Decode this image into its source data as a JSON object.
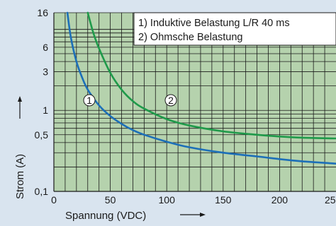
{
  "chart_data": {
    "type": "line",
    "xlabel": "Spannung (VDC)",
    "ylabel": "Strom (A)",
    "x_ticks": [
      {
        "value": 0,
        "label": "0"
      },
      {
        "value": 50,
        "label": "50"
      },
      {
        "value": 100,
        "label": "100"
      },
      {
        "value": 150,
        "label": "150"
      },
      {
        "value": 200,
        "label": "200"
      },
      {
        "value": 250,
        "label": "250"
      }
    ],
    "y_ticks": [
      {
        "value": 0.1,
        "label": "0,1"
      },
      {
        "value": 0.5,
        "label": "0,5"
      },
      {
        "value": 1,
        "label": "1"
      },
      {
        "value": 3,
        "label": "3"
      },
      {
        "value": 6,
        "label": "6"
      },
      {
        "value": 16,
        "label": "16"
      }
    ],
    "y_scale": "log",
    "xlim": [
      0,
      250
    ],
    "ylim": [
      0.1,
      16
    ],
    "grid": true,
    "legend": [
      {
        "label": "1) Induktive Belastung L/R 40 ms",
        "marker": "1"
      },
      {
        "label": "2) Ohmsche Belastung",
        "marker": "2"
      }
    ],
    "series": [
      {
        "marker": "1",
        "color": "#1c6fb8",
        "x": [
          12,
          15,
          20,
          25,
          30,
          40,
          50,
          60,
          70,
          80,
          100,
          120,
          150,
          180,
          200,
          220,
          250
        ],
        "y": [
          16,
          8.0,
          4.0,
          2.55,
          1.8,
          1.15,
          0.85,
          0.68,
          0.57,
          0.5,
          0.41,
          0.35,
          0.3,
          0.27,
          0.25,
          0.235,
          0.22
        ]
      },
      {
        "marker": "2",
        "color": "#1f9a4a",
        "x": [
          30,
          35,
          40,
          50,
          60,
          70,
          80,
          100,
          120,
          150,
          180,
          200,
          220,
          250
        ],
        "y": [
          16,
          9.0,
          5.8,
          2.9,
          1.8,
          1.3,
          1.05,
          0.78,
          0.65,
          0.55,
          0.5,
          0.475,
          0.46,
          0.45
        ]
      }
    ]
  }
}
